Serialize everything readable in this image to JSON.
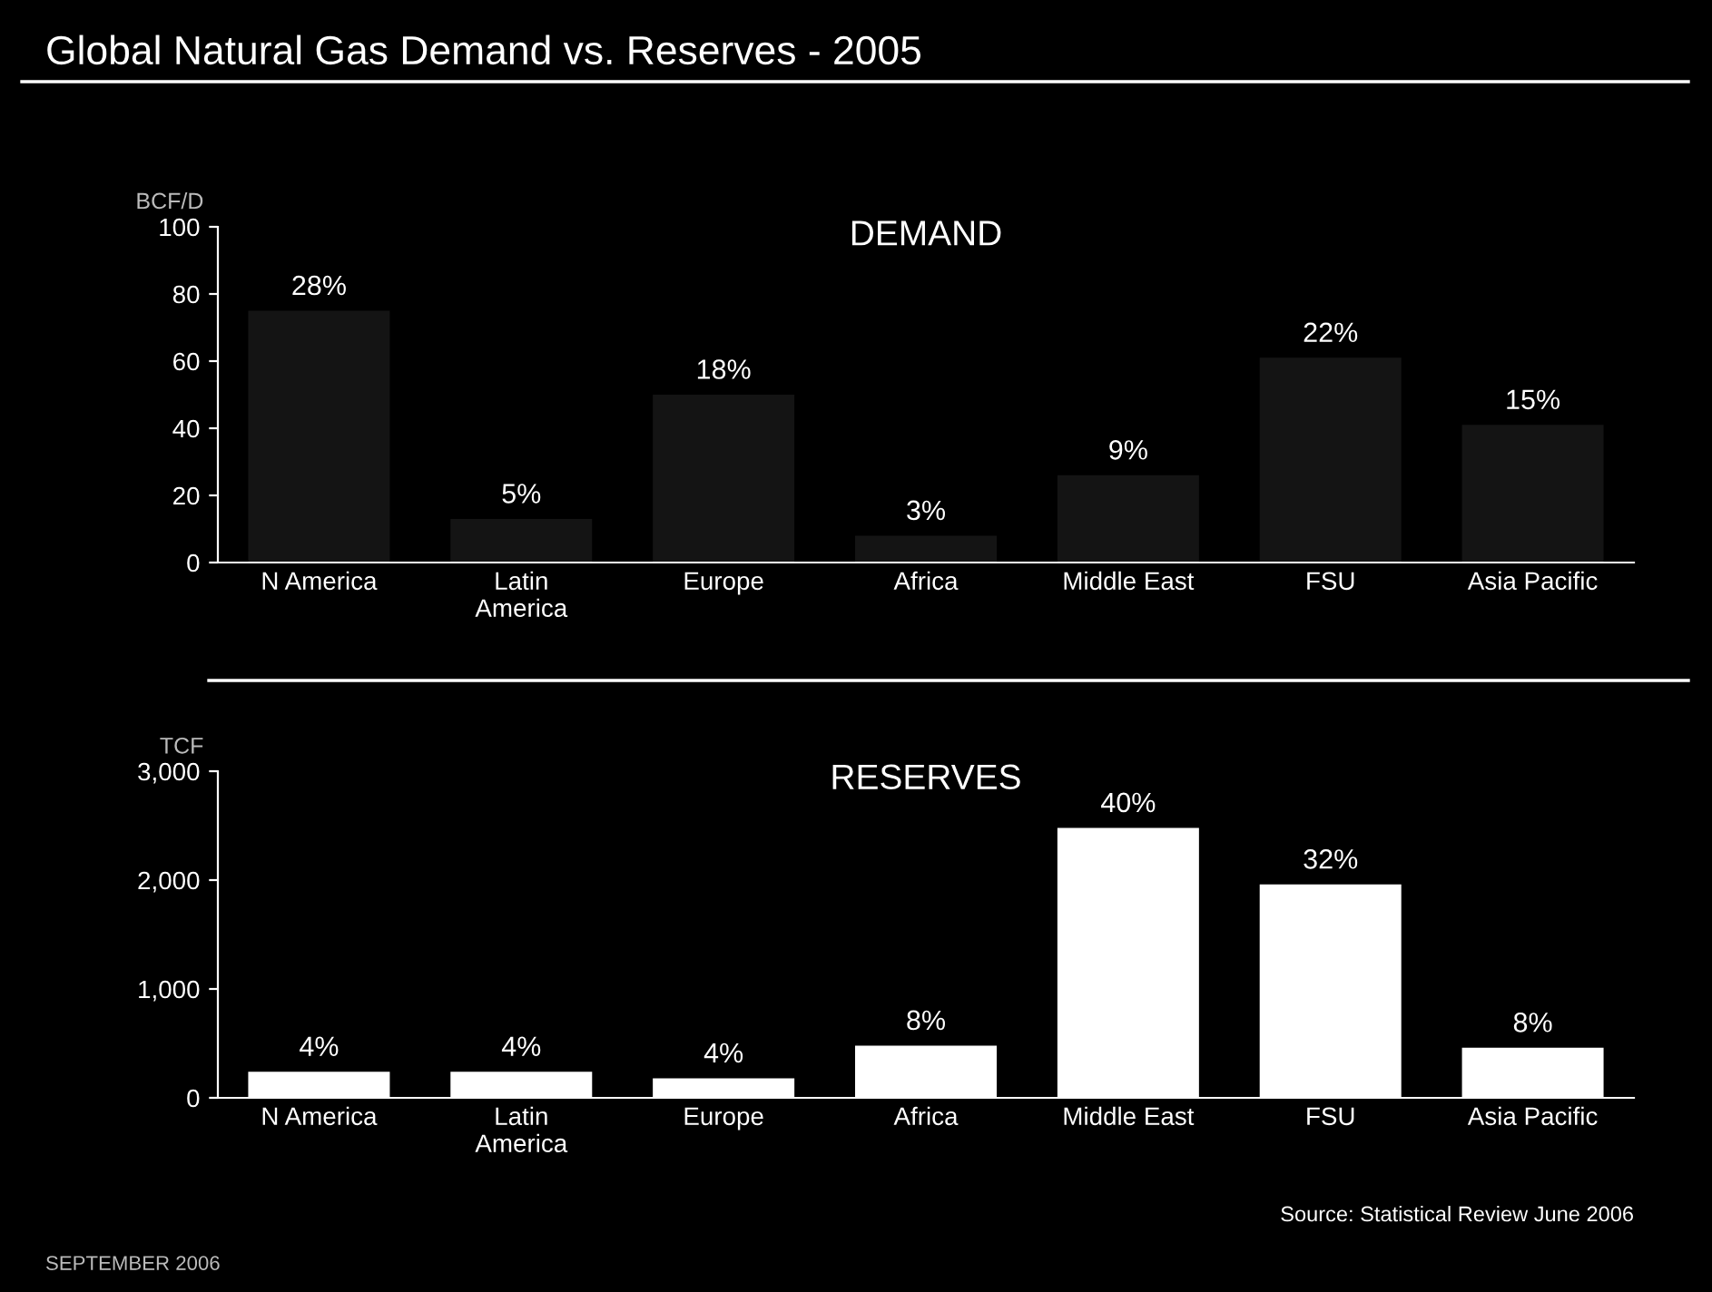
{
  "chart_data": [
    {
      "type": "bar",
      "title": "DEMAND",
      "ylabel": "BCF/D",
      "annotations": [
        "Global Natural Gas Demand vs. Reserves - 2005",
        "28%",
        "5%",
        "18%",
        "3%",
        "9%",
        "22%",
        "15%"
      ],
      "categories": [
        "N America",
        "Latin\nAmerica",
        "Europe",
        "Africa",
        "Middle East",
        "FSU",
        "Asia Pacific"
      ],
      "series": [
        {
          "color": "#141414",
          "values": [
            75,
            13,
            50,
            8,
            26,
            61,
            41
          ]
        }
      ],
      "ylim": [
        0,
        100
      ],
      "yticks": [
        0,
        20,
        40,
        60,
        80,
        100
      ]
    },
    {
      "type": "bar",
      "title": "RESERVES",
      "ylabel": "TCF",
      "annotations": [
        "Source: Statistical Review June 2006",
        "SEPTEMBER 2006",
        "4%",
        "4%",
        "4%",
        "8%",
        "40%",
        "32%",
        "8%"
      ],
      "categories": [
        "N America",
        "Latin\nAmerica",
        "Europe",
        "Africa",
        "Middle East",
        "FSU",
        "Asia Pacific"
      ],
      "series": [
        {
          "color": "#ffffff",
          "values": [
            240,
            240,
            180,
            480,
            2480,
            1960,
            460
          ]
        }
      ],
      "ylim": [
        0,
        3000
      ],
      "yticks": [
        0,
        {
          "value": 1000,
          "label": "1,000"
        },
        {
          "value": 2000,
          "label": "2,000"
        },
        {
          "value": 3000,
          "label": "3,000"
        }
      ]
    }
  ]
}
